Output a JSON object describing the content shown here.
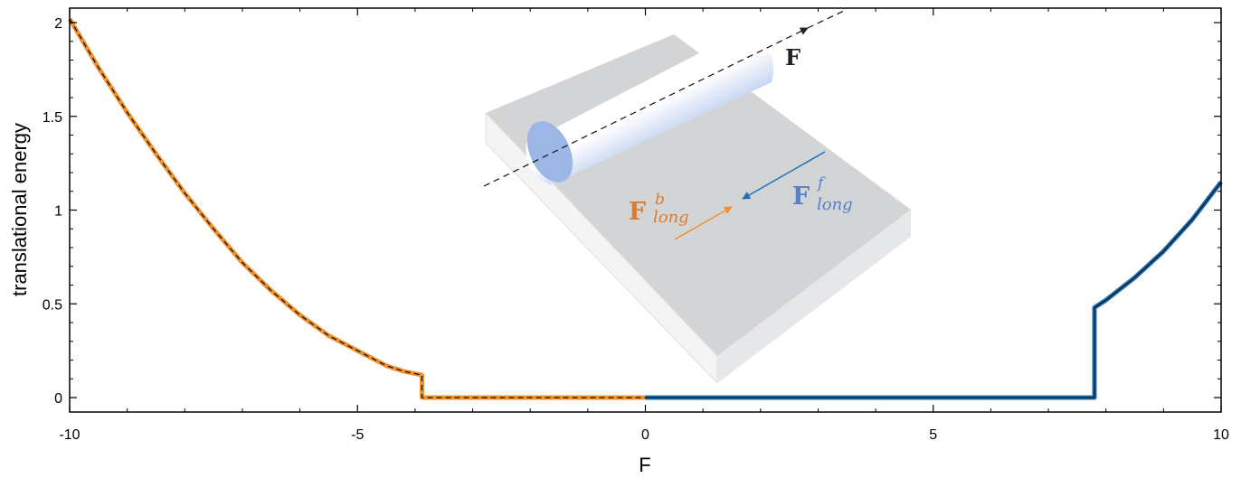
{
  "chart_data": {
    "type": "line",
    "xlabel": "F",
    "ylabel": "translational energy",
    "xlim": [
      -10,
      10
    ],
    "ylim": [
      -0.1,
      2.05
    ],
    "x_ticks": [
      -10,
      -5,
      0,
      5,
      10
    ],
    "y_ticks": [
      0,
      0.5,
      1,
      1.5,
      2
    ],
    "x_tick_labels": [
      "-10",
      "-5",
      "0",
      "5",
      "10"
    ],
    "y_tick_labels": [
      "0",
      "0.5",
      "1",
      "1.5",
      "2"
    ],
    "grid": false,
    "series": [
      {
        "color": "#f0922e",
        "style": "thick-with-dashed-core",
        "x": [
          -10,
          -9.5,
          -9,
          -8.5,
          -8,
          -7.5,
          -7,
          -6.5,
          -6,
          -5.5,
          -5,
          -4.5,
          -4.2,
          -3.88,
          -3.88,
          -3,
          -2,
          -1,
          0
        ],
        "y": [
          2.02,
          1.76,
          1.52,
          1.3,
          1.09,
          0.9,
          0.72,
          0.57,
          0.44,
          0.33,
          0.25,
          0.17,
          0.14,
          0.12,
          0.0,
          0.0,
          0.0,
          0.0,
          0.0
        ]
      },
      {
        "color": "#1b6fb5",
        "style": "thick-with-solid-core",
        "x": [
          0,
          2,
          4,
          6,
          7.8,
          7.8,
          8,
          8.5,
          9,
          9.5,
          10
        ],
        "y": [
          0.0,
          0.0,
          0.0,
          0.0,
          0.0,
          0.48,
          0.52,
          0.64,
          0.78,
          0.95,
          1.15
        ]
      }
    ],
    "inset": {
      "labels": {
        "force": "F",
        "backward_main": "F",
        "backward_sup": "b",
        "backward_sub": "long",
        "forward_main": "F",
        "forward_sup": "f",
        "forward_sub": "long"
      },
      "colors": {
        "slab_top": "#d3d4d6",
        "slab_side": "#e6e7e8",
        "cylinder": "#9cb6e6",
        "backward_arrow": "#f0922e",
        "forward_arrow": "#1b6fb5",
        "backward_text": "#e07a2a",
        "forward_text": "#5a7fc8"
      }
    }
  }
}
